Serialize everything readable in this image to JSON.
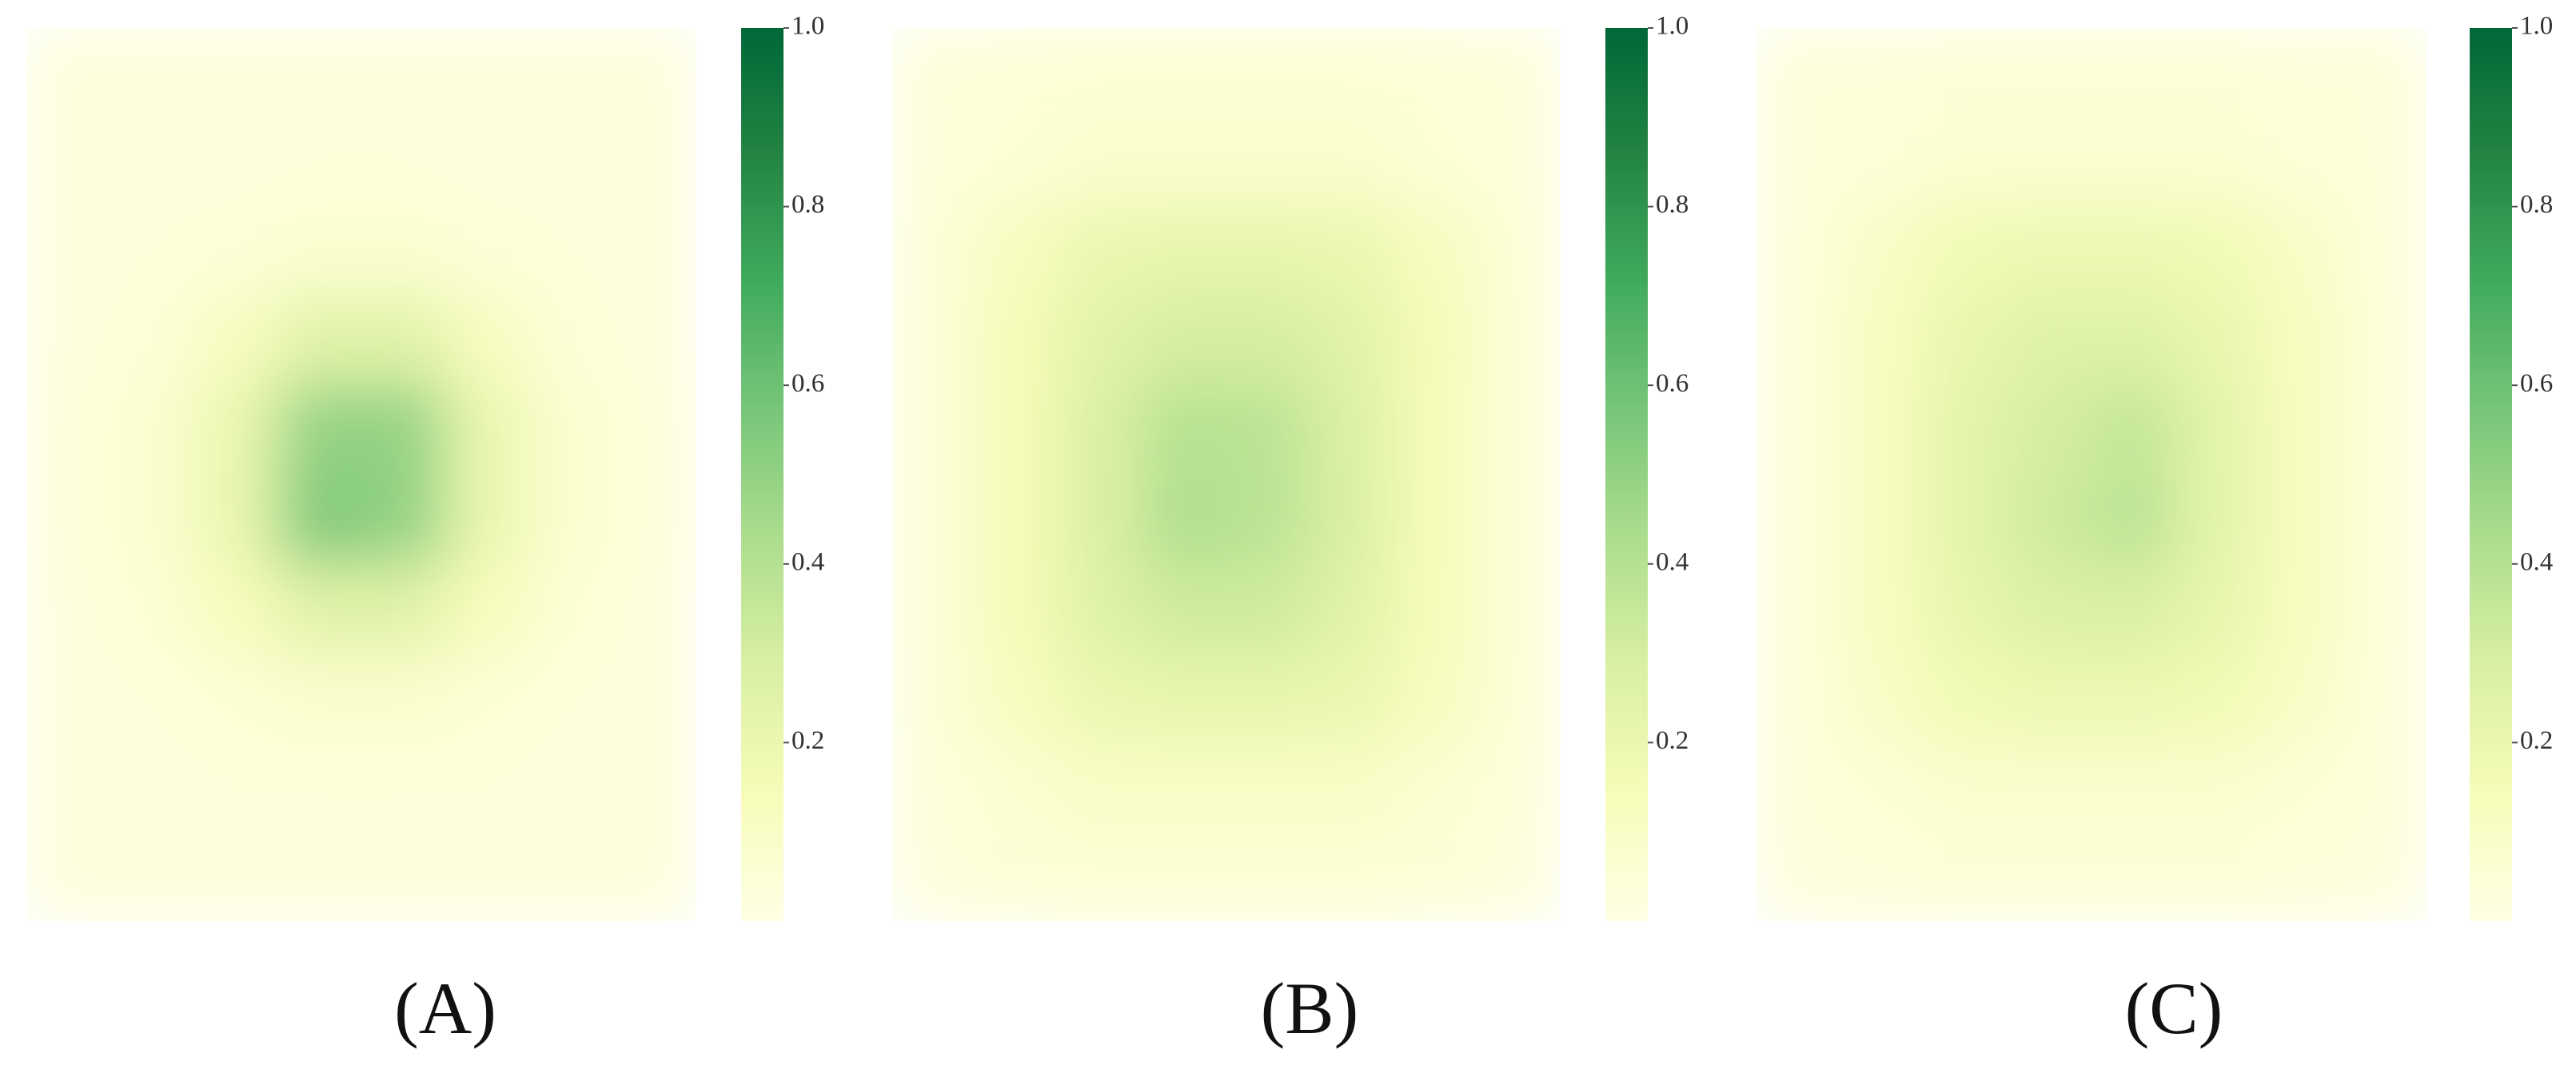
{
  "chart_data": [
    {
      "type": "heatmap",
      "label": "(A)",
      "clim": [
        0,
        1
      ],
      "cticks": [
        0.2,
        0.4,
        0.6,
        0.8,
        {
          "value": 1,
          "label": "1.0"
        }
      ],
      "colormap": [
        "#ffffe5",
        "#f7fcb9",
        "#d9f0a3",
        "#addd8e",
        "#78c679",
        "#41ab5d",
        "#238443",
        "#006837"
      ],
      "values": [
        [
          0.03,
          0.03,
          0.03,
          0.03,
          0.03,
          0.03,
          0.03,
          0.03
        ],
        [
          0.03,
          0.03,
          0.03,
          0.04,
          0.04,
          0.03,
          0.03,
          0.03
        ],
        [
          0.03,
          0.04,
          0.05,
          0.07,
          0.07,
          0.05,
          0.04,
          0.03
        ],
        [
          0.03,
          0.05,
          0.12,
          0.25,
          0.25,
          0.12,
          0.05,
          0.03
        ],
        [
          0.04,
          0.07,
          0.2,
          0.5,
          0.5,
          0.2,
          0.07,
          0.04
        ],
        [
          0.04,
          0.07,
          0.2,
          0.55,
          0.5,
          0.2,
          0.07,
          0.04
        ],
        [
          0.03,
          0.06,
          0.13,
          0.25,
          0.25,
          0.13,
          0.06,
          0.03
        ],
        [
          0.03,
          0.04,
          0.06,
          0.08,
          0.08,
          0.06,
          0.04,
          0.03
        ],
        [
          0.03,
          0.03,
          0.04,
          0.04,
          0.04,
          0.04,
          0.03,
          0.03
        ],
        [
          0.03,
          0.03,
          0.03,
          0.03,
          0.03,
          0.03,
          0.03,
          0.03
        ]
      ]
    },
    {
      "type": "heatmap",
      "label": "(B)",
      "clim": [
        0,
        1
      ],
      "cticks": [
        0.2,
        0.4,
        0.6,
        0.8,
        {
          "value": 1,
          "label": "1.0"
        }
      ],
      "colormap": [
        "#ffffe5",
        "#f7fcb9",
        "#d9f0a3",
        "#addd8e",
        "#78c679",
        "#41ab5d",
        "#238443",
        "#006837"
      ],
      "values": [
        [
          0.04,
          0.05,
          0.06,
          0.06,
          0.06,
          0.06,
          0.05,
          0.04
        ],
        [
          0.04,
          0.06,
          0.08,
          0.08,
          0.08,
          0.08,
          0.06,
          0.04
        ],
        [
          0.05,
          0.12,
          0.2,
          0.22,
          0.22,
          0.2,
          0.12,
          0.05
        ],
        [
          0.05,
          0.15,
          0.25,
          0.3,
          0.3,
          0.25,
          0.15,
          0.05
        ],
        [
          0.05,
          0.15,
          0.28,
          0.4,
          0.38,
          0.27,
          0.14,
          0.05
        ],
        [
          0.05,
          0.15,
          0.28,
          0.42,
          0.38,
          0.28,
          0.14,
          0.05
        ],
        [
          0.05,
          0.15,
          0.26,
          0.32,
          0.32,
          0.25,
          0.14,
          0.05
        ],
        [
          0.05,
          0.12,
          0.2,
          0.22,
          0.22,
          0.2,
          0.12,
          0.05
        ],
        [
          0.04,
          0.07,
          0.1,
          0.1,
          0.1,
          0.1,
          0.07,
          0.04
        ],
        [
          0.03,
          0.05,
          0.06,
          0.06,
          0.06,
          0.06,
          0.05,
          0.03
        ]
      ]
    },
    {
      "type": "heatmap",
      "label": "(C)",
      "clim": [
        0,
        1
      ],
      "cticks": [
        0.2,
        0.4,
        0.6,
        0.8,
        {
          "value": 1,
          "label": "1.0"
        }
      ],
      "colormap": [
        "#ffffe5",
        "#f7fcb9",
        "#d9f0a3",
        "#addd8e",
        "#78c679",
        "#41ab5d",
        "#238443",
        "#006837"
      ],
      "values": [
        [
          0.04,
          0.04,
          0.05,
          0.05,
          0.05,
          0.05,
          0.04,
          0.04
        ],
        [
          0.04,
          0.05,
          0.07,
          0.07,
          0.07,
          0.07,
          0.05,
          0.04
        ],
        [
          0.04,
          0.1,
          0.17,
          0.19,
          0.19,
          0.17,
          0.1,
          0.04
        ],
        [
          0.04,
          0.12,
          0.21,
          0.26,
          0.26,
          0.21,
          0.12,
          0.04
        ],
        [
          0.04,
          0.12,
          0.24,
          0.3,
          0.36,
          0.24,
          0.12,
          0.04
        ],
        [
          0.04,
          0.12,
          0.24,
          0.32,
          0.38,
          0.24,
          0.12,
          0.04
        ],
        [
          0.04,
          0.12,
          0.22,
          0.27,
          0.28,
          0.22,
          0.12,
          0.04
        ],
        [
          0.04,
          0.1,
          0.17,
          0.19,
          0.19,
          0.17,
          0.1,
          0.04
        ],
        [
          0.04,
          0.06,
          0.08,
          0.08,
          0.08,
          0.08,
          0.06,
          0.04
        ],
        [
          0.03,
          0.04,
          0.05,
          0.05,
          0.05,
          0.05,
          0.04,
          0.03
        ]
      ]
    }
  ]
}
